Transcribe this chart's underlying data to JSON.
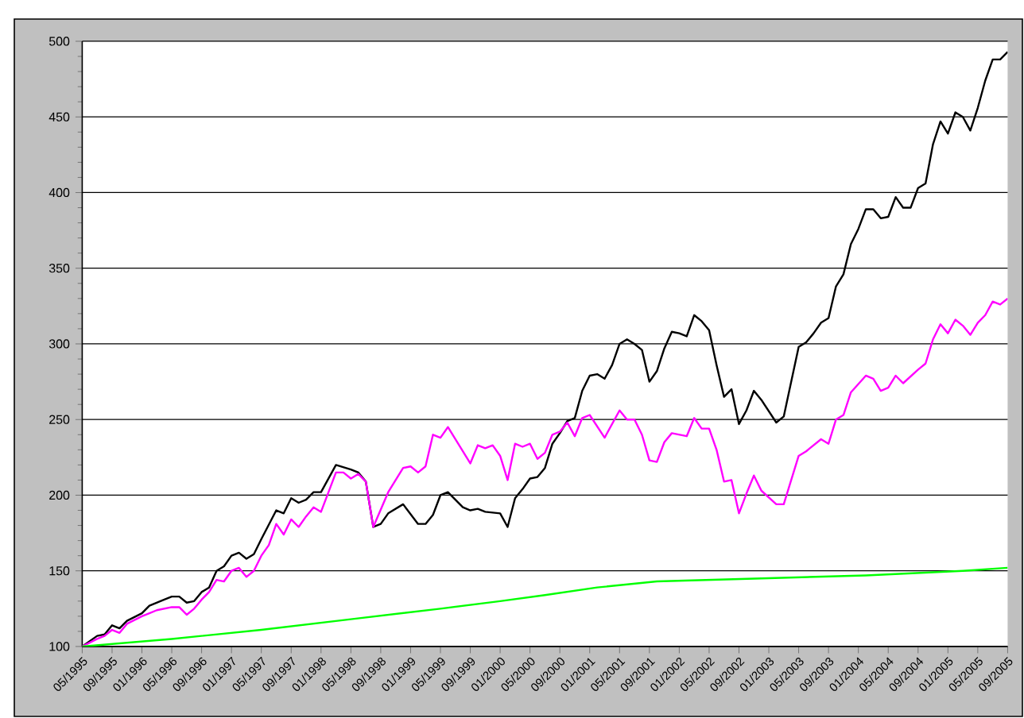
{
  "chart_data": {
    "type": "line",
    "xlim": [
      "1995-05",
      "2005-09"
    ],
    "ylim": [
      100,
      500
    ],
    "yticks": [
      100,
      150,
      200,
      250,
      300,
      350,
      400,
      450,
      500
    ],
    "xticks": [
      {
        "value": "1995-05",
        "label": "05/1995"
      },
      {
        "value": "1995-09",
        "label": "09/1995"
      },
      {
        "value": "1996-01",
        "label": "01/1996"
      },
      {
        "value": "1996-05",
        "label": "05/1996"
      },
      {
        "value": "1996-09",
        "label": "09/1996"
      },
      {
        "value": "1997-01",
        "label": "01/1997"
      },
      {
        "value": "1997-05",
        "label": "05/1997"
      },
      {
        "value": "1997-09",
        "label": "09/1997"
      },
      {
        "value": "1998-01",
        "label": "01/1998"
      },
      {
        "value": "1998-05",
        "label": "05/1998"
      },
      {
        "value": "1998-09",
        "label": "09/1998"
      },
      {
        "value": "1999-01",
        "label": "01/1999"
      },
      {
        "value": "1999-05",
        "label": "05/1999"
      },
      {
        "value": "1999-09",
        "label": "09/1999"
      },
      {
        "value": "2000-01",
        "label": "01/2000"
      },
      {
        "value": "2000-05",
        "label": "05/2000"
      },
      {
        "value": "2000-09",
        "label": "09/2000"
      },
      {
        "value": "2001-01",
        "label": "01/2001"
      },
      {
        "value": "2001-05",
        "label": "05/2001"
      },
      {
        "value": "2001-09",
        "label": "09/2001"
      },
      {
        "value": "2002-01",
        "label": "01/2002"
      },
      {
        "value": "2002-05",
        "label": "05/2002"
      },
      {
        "value": "2002-09",
        "label": "09/2002"
      },
      {
        "value": "2003-01",
        "label": "01/2003"
      },
      {
        "value": "2003-05",
        "label": "05/2003"
      },
      {
        "value": "2003-09",
        "label": "09/2003"
      },
      {
        "value": "2004-01",
        "label": "01/2004"
      },
      {
        "value": "2004-05",
        "label": "05/2004"
      },
      {
        "value": "2004-09",
        "label": "09/2004"
      },
      {
        "value": "2005-01",
        "label": "01/2005"
      },
      {
        "value": "2005-05",
        "label": "05/2005"
      },
      {
        "value": "2005-09",
        "label": "09/2005"
      }
    ],
    "grid": "y",
    "marker": "none",
    "line_style": "solid",
    "series": [
      {
        "color": "#000000",
        "x": [
          "1995-05",
          "1995-07",
          "1995-08",
          "1995-09",
          "1995-10",
          "1995-11",
          "1996-01",
          "1996-02",
          "1996-04",
          "1996-05",
          "1996-06",
          "1996-07",
          "1996-08",
          "1996-09",
          "1996-10",
          "1996-11",
          "1996-12",
          "1997-01",
          "1997-02",
          "1997-03",
          "1997-04",
          "1997-05",
          "1997-07",
          "1997-08",
          "1997-09",
          "1997-10",
          "1997-11",
          "1997-12",
          "1998-01",
          "1998-03",
          "1998-05",
          "1998-06",
          "1998-07",
          "1998-08",
          "1998-09",
          "1998-10",
          "1998-12",
          "1999-02",
          "1999-03",
          "1999-04",
          "1999-05",
          "1999-06",
          "1999-08",
          "1999-09",
          "1999-10",
          "1999-11",
          "2000-01",
          "2000-02",
          "2000-03",
          "2000-04",
          "2000-05",
          "2000-06",
          "2000-07",
          "2000-08",
          "2000-09",
          "2000-10",
          "2000-11",
          "2000-12",
          "2001-01",
          "2001-02",
          "2001-03",
          "2001-04",
          "2001-05",
          "2001-06",
          "2001-07",
          "2001-08",
          "2001-09",
          "2001-10",
          "2001-11",
          "2001-12",
          "2002-01",
          "2002-02",
          "2002-03",
          "2002-04",
          "2002-05",
          "2002-06",
          "2002-07",
          "2002-08",
          "2002-09",
          "2002-10",
          "2002-11",
          "2002-12",
          "2003-02",
          "2003-03",
          "2003-05",
          "2003-06",
          "2003-07",
          "2003-08",
          "2003-09",
          "2003-10",
          "2003-11",
          "2003-12",
          "2004-01",
          "2004-02",
          "2004-03",
          "2004-04",
          "2004-05",
          "2004-06",
          "2004-07",
          "2004-08",
          "2004-09",
          "2004-10",
          "2004-11",
          "2004-12",
          "2005-01",
          "2005-02",
          "2005-03",
          "2005-04",
          "2005-05",
          "2005-06",
          "2005-07",
          "2005-08",
          "2005-09"
        ],
        "values": [
          100,
          107,
          108,
          114,
          112,
          117,
          122,
          127,
          131,
          133,
          133,
          129,
          130,
          136,
          139,
          150,
          153,
          160,
          162,
          158,
          161,
          171,
          190,
          188,
          198,
          195,
          197,
          202,
          202,
          220,
          217,
          215,
          209,
          179,
          181,
          188,
          194,
          181,
          181,
          187,
          200,
          202,
          192,
          190,
          191,
          189,
          188,
          179,
          198,
          204,
          211,
          212,
          218,
          234,
          241,
          249,
          251,
          269,
          279,
          280,
          277,
          286,
          300,
          303,
          300,
          296,
          275,
          282,
          297,
          308,
          307,
          305,
          319,
          315,
          309,
          286,
          265,
          270,
          247,
          256,
          269,
          263,
          248,
          252,
          298,
          301,
          307,
          314,
          317,
          338,
          346,
          366,
          376,
          389,
          389,
          383,
          384,
          397,
          390,
          390,
          403,
          406,
          432,
          447,
          439,
          453,
          450,
          441,
          456,
          474,
          488,
          488,
          493
        ]
      },
      {
        "color": "#ff00ff",
        "x": [
          "1995-05",
          "1995-07",
          "1995-08",
          "1995-09",
          "1995-10",
          "1995-11",
          "1996-01",
          "1996-02",
          "1996-03",
          "1996-05",
          "1996-06",
          "1996-07",
          "1996-08",
          "1996-09",
          "1996-10",
          "1996-11",
          "1996-12",
          "1997-01",
          "1997-02",
          "1997-03",
          "1997-04",
          "1997-05",
          "1997-06",
          "1997-07",
          "1997-08",
          "1997-09",
          "1997-10",
          "1997-11",
          "1997-12",
          "1998-01",
          "1998-03",
          "1998-04",
          "1998-05",
          "1998-06",
          "1998-07",
          "1998-08",
          "1998-10",
          "1998-12",
          "1999-01",
          "1999-02",
          "1999-03",
          "1999-04",
          "1999-05",
          "1999-06",
          "1999-09",
          "1999-10",
          "1999-11",
          "1999-12",
          "2000-01",
          "2000-02",
          "2000-03",
          "2000-04",
          "2000-05",
          "2000-06",
          "2000-07",
          "2000-08",
          "2000-09",
          "2000-10",
          "2000-11",
          "2000-12",
          "2001-01",
          "2001-03",
          "2001-05",
          "2001-06",
          "2001-07",
          "2001-08",
          "2001-09",
          "2001-10",
          "2001-11",
          "2001-12",
          "2002-02",
          "2002-03",
          "2002-04",
          "2002-05",
          "2002-06",
          "2002-07",
          "2002-08",
          "2002-09",
          "2002-10",
          "2002-11",
          "2002-12",
          "2003-02",
          "2003-03",
          "2003-05",
          "2003-06",
          "2003-08",
          "2003-09",
          "2003-10",
          "2003-11",
          "2003-12",
          "2004-02",
          "2004-03",
          "2004-04",
          "2004-05",
          "2004-06",
          "2004-07",
          "2004-09",
          "2004-10",
          "2004-11",
          "2004-12",
          "2005-01",
          "2005-02",
          "2005-03",
          "2005-04",
          "2005-05",
          "2005-06",
          "2005-07",
          "2005-08",
          "2005-09"
        ],
        "values": [
          100,
          105,
          107,
          111,
          109,
          115,
          120,
          122,
          124,
          126,
          126,
          121,
          125,
          131,
          136,
          144,
          143,
          150,
          152,
          146,
          150,
          160,
          167,
          181,
          174,
          184,
          179,
          186,
          192,
          189,
          215,
          215,
          211,
          214,
          209,
          179,
          202,
          218,
          219,
          215,
          219,
          240,
          238,
          245,
          221,
          233,
          231,
          233,
          226,
          210,
          234,
          232,
          234,
          224,
          228,
          240,
          242,
          248,
          239,
          251,
          253,
          238,
          256,
          250,
          250,
          240,
          223,
          222,
          235,
          241,
          239,
          251,
          244,
          244,
          230,
          209,
          210,
          188,
          201,
          213,
          203,
          194,
          194,
          226,
          229,
          237,
          234,
          250,
          253,
          268,
          279,
          277,
          269,
          271,
          279,
          274,
          283,
          287,
          303,
          313,
          307,
          316,
          312,
          306,
          314,
          319,
          328,
          326,
          330
        ]
      },
      {
        "color": "#00ff00",
        "x": [
          "1995-05",
          "1996-05",
          "1997-05",
          "1998-05",
          "1999-05",
          "2000-01",
          "2000-07",
          "2001-02",
          "2001-10",
          "2002-12",
          "2004-02",
          "2005-03",
          "2005-09"
        ],
        "values": [
          100,
          105,
          111,
          118,
          125,
          130,
          134,
          139,
          143,
          145,
          147,
          150,
          152
        ]
      }
    ]
  }
}
